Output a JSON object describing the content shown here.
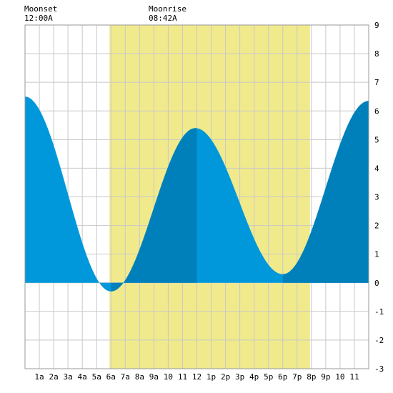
{
  "header": {
    "moonset": {
      "label": "Moonset",
      "time": "12:00A"
    },
    "moonrise": {
      "label": "Moonrise",
      "time": "08:42A"
    }
  },
  "colors": {
    "daylight": "#f0ea8c",
    "tide_fill": "#0098da",
    "tide_fill_dark": "#0080bb",
    "grid": "#c8c8c8",
    "background": "#ffffff"
  },
  "chart_data": {
    "type": "area",
    "title": "",
    "xlabel": "",
    "ylabel": "",
    "xlim": [
      0,
      24
    ],
    "ylim": [
      -3,
      9
    ],
    "grid": true,
    "x_tick_labels": [
      "1a",
      "2a",
      "3a",
      "4a",
      "5a",
      "6a",
      "7a",
      "8a",
      "9a",
      "10",
      "11",
      "12",
      "1p",
      "2p",
      "3p",
      "4p",
      "5p",
      "6p",
      "7p",
      "8p",
      "9p",
      "10",
      "11"
    ],
    "y_tick_labels": [
      "9",
      "8",
      "7",
      "6",
      "5",
      "4",
      "3",
      "2",
      "1",
      "0",
      "-1",
      "-2",
      "-3"
    ],
    "daylight": {
      "start_hour": 5.9,
      "end_hour": 19.9
    },
    "darker_bands": [
      [
        6.0,
        12.0
      ],
      [
        18.0,
        24.0
      ]
    ],
    "tide_extremes": [
      {
        "hour": 0.0,
        "height": 6.5
      },
      {
        "hour": 6.0,
        "height": -0.3
      },
      {
        "hour": 11.9,
        "height": 5.4
      },
      {
        "hour": 18.0,
        "height": 0.3
      },
      {
        "hour": 24.0,
        "height": 6.35
      }
    ]
  }
}
